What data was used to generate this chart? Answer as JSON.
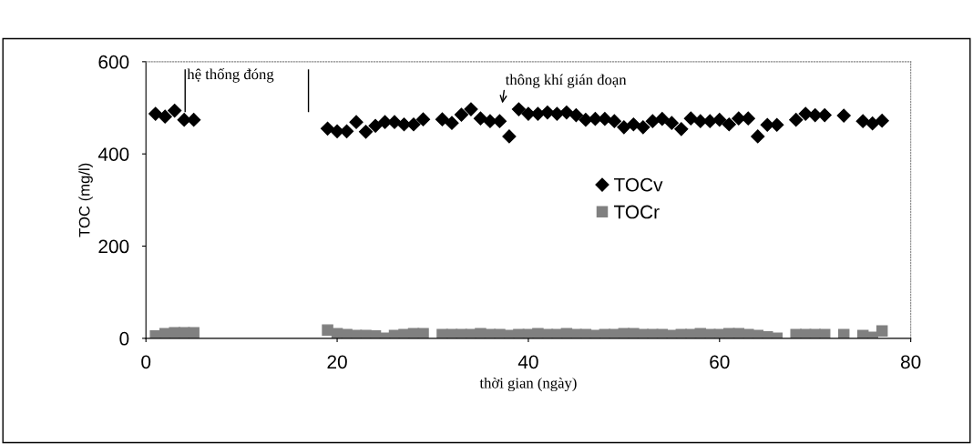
{
  "chart_data": {
    "type": "scatter",
    "xlabel": "thời gian (ngày)",
    "ylabel": "TOC (mg/l)",
    "x": [
      1,
      2,
      3,
      4,
      5,
      19,
      20,
      21,
      22,
      23,
      24,
      25,
      26,
      27,
      28,
      29,
      31,
      32,
      33,
      34,
      35,
      36,
      37,
      38,
      39,
      40,
      41,
      42,
      43,
      44,
      45,
      46,
      47,
      48,
      49,
      50,
      51,
      52,
      53,
      54,
      55,
      56,
      57,
      58,
      59,
      60,
      61,
      62,
      63,
      64,
      65,
      66,
      68,
      69,
      70,
      71,
      73,
      75,
      76,
      77
    ],
    "series": [
      {
        "name": "TOCv",
        "color": "#000000",
        "marker": "diamond",
        "values": [
          487,
          481,
          494,
          474,
          474,
          455,
          449,
          449,
          469,
          448,
          461,
          469,
          469,
          464,
          464,
          475,
          475,
          467,
          485,
          497,
          477,
          471,
          471,
          438,
          497,
          487,
          487,
          490,
          487,
          490,
          484,
          474,
          476,
          476,
          471,
          458,
          464,
          458,
          471,
          476,
          467,
          454,
          477,
          471,
          471,
          474,
          464,
          477,
          477,
          438,
          463,
          463,
          474,
          487,
          484,
          484,
          483,
          471,
          466,
          472
        ]
      },
      {
        "name": "TOCr",
        "color": "#808080",
        "marker": "square",
        "values": [
          5,
          10,
          12,
          12,
          12,
          18,
          10,
          8,
          6,
          6,
          5,
          0,
          6,
          8,
          10,
          10,
          8,
          8,
          8,
          8,
          10,
          8,
          8,
          6,
          8,
          8,
          10,
          8,
          8,
          10,
          8,
          8,
          6,
          8,
          8,
          10,
          10,
          8,
          8,
          8,
          6,
          8,
          8,
          10,
          8,
          8,
          10,
          10,
          8,
          6,
          3,
          0,
          8,
          8,
          8,
          8,
          8,
          6,
          2,
          16
        ]
      }
    ],
    "xlim": [
      0,
      80
    ],
    "xticks": [
      0,
      20,
      40,
      60,
      80
    ],
    "ylim": [
      0,
      600
    ],
    "yticks": [
      0,
      200,
      400,
      600
    ],
    "grid": false,
    "legend": "center",
    "ref_lines": [
      {
        "axis": "x",
        "value": 4.1
      },
      {
        "axis": "x",
        "value": 17
      }
    ],
    "annotations": [
      {
        "text": "hệ thống đóng",
        "x": 4.3,
        "y": 555
      },
      "thông khí gián đoạn"
    ]
  }
}
